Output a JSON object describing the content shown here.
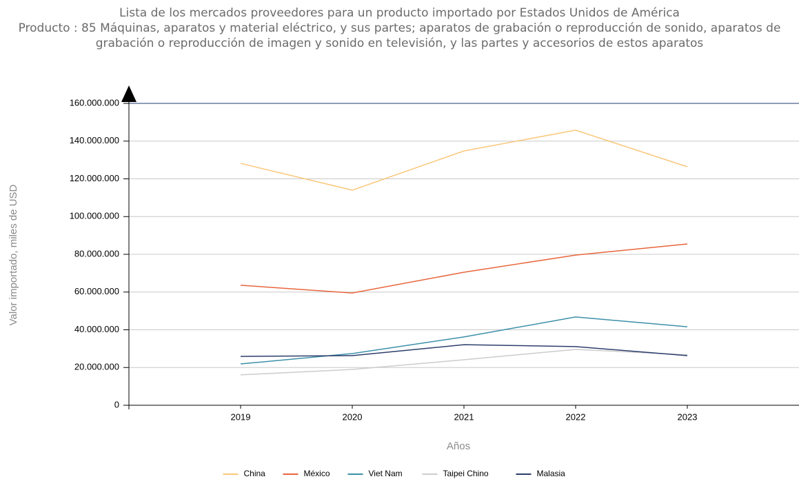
{
  "chart_data": {
    "type": "line",
    "title": "Lista de los mercados proveedores para un producto importado por Estados Unidos de América",
    "subtitle": "Producto : 85 Máquinas, aparatos y material eléctrico, y sus partes; aparatos de grabación o reproducción de sonido, aparatos de grabación o reproducción de imagen y sonido en televisión, y las partes y accesorios de estos aparatos",
    "x_label": "Años",
    "y_label": "Valor importado, miles de USD",
    "categories": [
      "2019",
      "2020",
      "2021",
      "2022",
      "2023"
    ],
    "series": [
      {
        "name": "China",
        "color": "#f9c77a",
        "values": [
          128200000,
          114000000,
          134800000,
          145800000,
          126400000
        ]
      },
      {
        "name": "México",
        "color": "#e8643c",
        "values": [
          63600000,
          59500000,
          70500000,
          79600000,
          85500000
        ]
      },
      {
        "name": "Viet Nam",
        "color": "#3b8fa8",
        "values": [
          21900000,
          27400000,
          36200000,
          46800000,
          41600000
        ]
      },
      {
        "name": "Taipei Chino",
        "color": "#cccccc",
        "values": [
          16100000,
          19000000,
          24100000,
          29600000,
          26700000
        ]
      },
      {
        "name": "Malasia",
        "color": "#2b3d6b",
        "values": [
          25900000,
          26300000,
          32100000,
          31100000,
          26300000
        ]
      }
    ],
    "ylim": [
      0,
      160000000
    ],
    "yticks": [
      0,
      {
        "value": 20000000,
        "label": "20.000.000"
      },
      {
        "value": 40000000,
        "label": "40.000.000"
      },
      {
        "value": 60000000,
        "label": "60.000.000"
      },
      {
        "value": 80000000,
        "label": "80.000.000"
      },
      {
        "value": 100000000,
        "label": "100.000.000"
      },
      {
        "value": 120000000,
        "label": "120.000.000"
      },
      {
        "value": 140000000,
        "label": "140.000.000"
      },
      {
        "value": 160000000,
        "label": "160.000.000"
      }
    ],
    "grid": true
  }
}
